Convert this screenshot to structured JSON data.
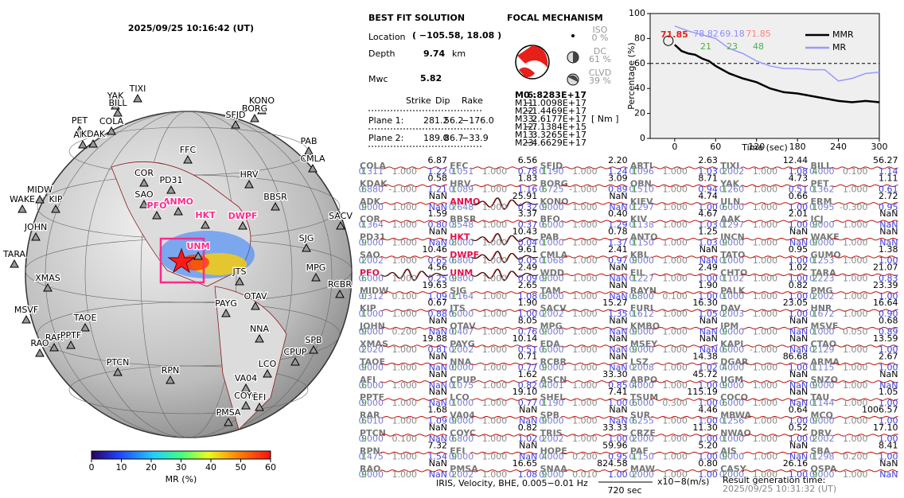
{
  "header": {
    "time": "2025/09/25  10:16:42 (UT)"
  },
  "solution": {
    "title": "BEST FIT SOLUTION",
    "location_label": "Location",
    "location": "( −105.58,  18.08 )",
    "depth_label": "Depth",
    "depth": "9.74",
    "depth_unit": "km",
    "mw_label": "Mwc",
    "mw": "5.82",
    "columns": [
      "Strike",
      "Dip",
      "Rake"
    ],
    "planes": [
      [
        "Plane 1:",
        "281.2",
        "56.2",
        "−176.0"
      ],
      [
        "Plane 2:",
        "189.0",
        "86.7",
        "−33.9"
      ]
    ]
  },
  "mechanism": {
    "title": "FOCAL MECHANISM",
    "parts": [
      [
        "ISO",
        "0 %"
      ],
      [
        "DC",
        "61 %"
      ],
      [
        "CLVD",
        "39 %"
      ]
    ],
    "tensor": [
      [
        "M0 :",
        "6.8283E+17"
      ],
      [
        "M11:",
        "−1.0098E+17"
      ],
      [
        "M22:",
        "−1.4469E+17"
      ],
      [
        "M33:",
        "2.6177E+17"
      ],
      [
        "M12:",
        "−7.1384E+15"
      ],
      [
        "M13:",
        "3.3265E+17"
      ],
      [
        "M23:",
        "−4.6629E+17"
      ]
    ],
    "unit": "[ Nm ]"
  },
  "chart_data": {
    "type": "line",
    "xlabel": "Time (sec)",
    "ylabel": "Percentage (%)",
    "xlim": [
      -36,
      300
    ],
    "ylim": [
      0,
      100
    ],
    "xticks": [
      0,
      60,
      120,
      180,
      240,
      300
    ],
    "yticks": [
      0,
      20,
      40,
      60,
      80,
      100
    ],
    "reference_line": 60,
    "legend": "upper right",
    "series": [
      {
        "name": "MMR",
        "color": "#000000",
        "x": [
          0,
          10,
          20,
          30,
          40,
          50,
          60,
          80,
          100,
          120,
          140,
          160,
          180,
          200,
          220,
          240,
          260,
          280,
          300
        ],
        "values": [
          75,
          70,
          68,
          67,
          64,
          62,
          58,
          52,
          48,
          45,
          40,
          37,
          36,
          34,
          32,
          30,
          29,
          30,
          29
        ]
      },
      {
        "name": "MR",
        "color": "#9a9aff",
        "x": [
          0,
          20,
          40,
          60,
          80,
          100,
          120,
          140,
          160,
          180,
          200,
          220,
          240,
          260,
          280,
          300
        ],
        "values": [
          90,
          86,
          83,
          80,
          72,
          68,
          62,
          58,
          56,
          56,
          55,
          55,
          46,
          48,
          52,
          53
        ]
      }
    ],
    "best": "71.85",
    "annotations": [
      [
        "78.82",
        "#8c8cff"
      ],
      [
        "69.18",
        "#8c8cff"
      ],
      [
        "71.85",
        "#ff8080"
      ],
      [
        "21",
        "#4caf50"
      ],
      [
        "23",
        "#4caf50"
      ],
      [
        "48",
        "#4caf50"
      ]
    ]
  },
  "map": {
    "stations": [
      [
        "YAK",
        false
      ],
      [
        "TIXI",
        false
      ],
      [
        "BILL",
        false
      ],
      [
        "KONO",
        false
      ],
      [
        "BORG",
        false
      ],
      [
        "PET",
        false
      ],
      [
        "COLA",
        false
      ],
      [
        "SFJD",
        false
      ],
      [
        "ADK",
        false
      ],
      [
        "KDAK",
        false
      ],
      [
        "PAB",
        false
      ],
      [
        "FFC",
        false
      ],
      [
        "CMLA",
        false
      ],
      [
        "COR",
        false
      ],
      [
        "PD31",
        false
      ],
      [
        "HRV",
        false
      ],
      [
        "SAO",
        false
      ],
      [
        "MIDW",
        false
      ],
      [
        "WAKE",
        false
      ],
      [
        "ANMO",
        true
      ],
      [
        "PFO",
        true
      ],
      [
        "KIP",
        false
      ],
      [
        "HKT",
        true
      ],
      [
        "DWPF",
        true
      ],
      [
        "BBSR",
        false
      ],
      [
        "SACV",
        false
      ],
      [
        "JOHN",
        false
      ],
      [
        "UNM",
        true
      ],
      [
        "SJG",
        false
      ],
      [
        "TARA",
        false
      ],
      [
        "MPG",
        false
      ],
      [
        "JTS",
        false
      ],
      [
        "RCBR",
        false
      ],
      [
        "XMAS",
        false
      ],
      [
        "OTAV",
        false
      ],
      [
        "PAYG",
        false
      ],
      [
        "MSVF",
        false
      ],
      [
        "TAOE",
        false
      ],
      [
        "RAR",
        false
      ],
      [
        "PPTF",
        false
      ],
      [
        "RAO",
        false
      ],
      [
        "NNA",
        false
      ],
      [
        "SPB",
        false
      ],
      [
        "CPUP",
        false
      ],
      [
        "LCO",
        false
      ],
      [
        "PTCN",
        false
      ],
      [
        "RPN",
        false
      ],
      [
        "VA04",
        false
      ],
      [
        "COYC",
        false
      ],
      [
        "EFI",
        false
      ],
      [
        "PMSA",
        false
      ]
    ],
    "colorbar": {
      "lim": [
        0,
        60
      ],
      "ticks": [
        0,
        10,
        20,
        30,
        40,
        50,
        60
      ],
      "label": "MR (%)"
    }
  },
  "stations": [
    [
      [
        "COLA",
        "6.87",
        "1",
        "0.311",
        "1.000",
        "1.22",
        false
      ],
      [
        "KDAK",
        "0.58",
        "6",
        "0.880",
        "-1.000",
        "1.21",
        false
      ],
      [
        "ADK",
        "NaN",
        "9",
        "0.000",
        "1.000",
        "NaN",
        false
      ],
      [
        "COR",
        "1.59",
        "1",
        "0.364",
        "1.000",
        "0.80",
        false
      ],
      [
        "PD31",
        "NaN",
        "9",
        "0.000",
        "1.000",
        "NaN",
        false
      ],
      [
        "SAO",
        "10.46",
        "2",
        "0.002",
        "1.000",
        "0.65",
        false
      ],
      [
        "PFO",
        "4.56",
        "6",
        "0.000",
        "1.000",
        "0.25",
        true
      ],
      [
        "MIDW",
        "19.63",
        "0",
        "0.312",
        "0.100",
        "1.09",
        false
      ],
      [
        "KIP",
        "0.67",
        "1",
        "0.000",
        "1.000",
        "0.88",
        false
      ],
      [
        "JOHN",
        "NaN",
        "9",
        "0.000",
        "0.200",
        "NaN",
        false
      ],
      [
        "XMAS",
        "19.88",
        "2",
        "0.020",
        "1.000",
        "0.81",
        false
      ],
      [
        "TAOE",
        "NaN",
        "9",
        "0.000",
        "1.000",
        "NaN",
        false
      ],
      [
        "AFI",
        "NaN",
        "6",
        "0.000",
        "1.000",
        "NaN",
        false
      ],
      [
        "PPTF",
        "NaN",
        "9",
        "0.000",
        "1.000",
        "NaN",
        false
      ],
      [
        "RAR",
        "1.68",
        "6",
        "0.010",
        "1.000",
        "1.09",
        false
      ],
      [
        "PTCN",
        "NaN",
        "9",
        "0.000",
        "0.100",
        "NaN",
        false
      ],
      [
        "RPN",
        "7.32",
        "1",
        "0.475",
        "1.000",
        "1.54",
        false
      ],
      [
        "RAO",
        "NaN",
        "9",
        "0.000",
        "1.000",
        "NaN",
        false
      ]
    ],
    [
      [
        "FFC",
        "6.56",
        "1",
        "0.051",
        "1.000",
        "0.78",
        false
      ],
      [
        "HRV",
        "1.83",
        "1",
        "0.089",
        "1.000",
        "1.16",
        false
      ],
      [
        "ANMO",
        "25.91",
        "7",
        "0.648",
        "1.000",
        "0.32",
        true
      ],
      [
        "BBSR",
        "3.37",
        "3",
        "0.548",
        "1.000",
        "0.37",
        false
      ],
      [
        "HKT",
        "10.43",
        "8",
        "0.000",
        "1.000",
        "0.04",
        true
      ],
      [
        "DWPF",
        "9.61",
        "6",
        "0.800",
        "1.000",
        "0.05",
        true
      ],
      [
        "UNM",
        "2.49",
        "9",
        "0.800",
        "1.000",
        "0.09",
        true
      ],
      [
        "SJG",
        "2.65",
        "1",
        "0.164",
        "1.000",
        "1.08",
        false
      ],
      [
        "JTS",
        "1.90",
        "6",
        "0.000",
        "1.000",
        "1.00",
        false
      ],
      [
        "OTAV",
        "8.05",
        "0",
        "0.407",
        "1.000",
        "0.76",
        false
      ],
      [
        "PAYG",
        "10.14",
        "2",
        "0.002",
        "1.000",
        "0.51",
        false
      ],
      [
        "NNA",
        "0.71",
        "0",
        "0.000",
        "1.000",
        "0.77",
        false
      ],
      [
        "CPUP",
        "1.62",
        "1",
        "0.075",
        "1.000",
        "0.82",
        false
      ],
      [
        "LCO",
        "19.10",
        "1",
        "0.000",
        "1.000",
        "0.77",
        false
      ],
      [
        "VA04",
        "NaN",
        "9",
        "0.000",
        "1.000",
        "NaN",
        false
      ],
      [
        "COYC",
        "0.82",
        "6",
        "0.800",
        "1.000",
        "1.02",
        false
      ],
      [
        "EFI",
        "NaN",
        "9",
        "0.000",
        "1.000",
        "NaN",
        false
      ],
      [
        "PMSA",
        "16.65",
        "2",
        "0.002",
        "1.000",
        "1.08",
        false
      ]
    ],
    [
      [
        "SFJD",
        "2.20",
        "1",
        "0.190",
        "1.000",
        "1.24",
        false
      ],
      [
        "BORG",
        "3.09",
        "6",
        "0.725",
        "-1.000",
        "0.89",
        false
      ],
      [
        "KONO",
        "NaN",
        "9",
        "0.000",
        "1.000",
        "NaN",
        false
      ],
      [
        "BFO",
        "0.40",
        "6",
        "0.000",
        "1.000",
        "1.29",
        false
      ],
      [
        "PAB",
        "0.78",
        "1",
        "0.000",
        "1.000",
        "1.37",
        false
      ],
      [
        "CMLA",
        "2.41",
        "1",
        "0.068",
        "1.000",
        "0.97",
        false
      ],
      [
        "WDD",
        "NaN",
        "9",
        "0.000",
        "1.000",
        "NaN",
        false
      ],
      [
        "TAM",
        "NaN",
        "6",
        "0.000",
        "1.000",
        "NaN",
        false
      ],
      [
        "SACV",
        "15.27",
        "2",
        "0.002",
        "1.000",
        "1.35",
        false
      ],
      [
        "MPG",
        "NaN",
        "9",
        "0.000",
        "1.000",
        "NaN",
        false
      ],
      [
        "EDA",
        "NaN",
        "6",
        "0.000",
        "1.000",
        "NaN",
        false
      ],
      [
        "RCBR",
        "NaN",
        "9",
        "0.000",
        "1.000",
        "NaN",
        false
      ],
      [
        "ASCN",
        "33.30",
        "4",
        "0.001",
        "1.000",
        "0.85",
        false
      ],
      [
        "SHEL",
        "7.41",
        "1",
        "0.190",
        "1.000",
        "1.00",
        false
      ],
      [
        "SPB",
        "NaN",
        "9",
        "0.000",
        "1.000",
        "NaN",
        false
      ],
      [
        "TRIS",
        "33.33",
        "2",
        "0.002",
        "1.000",
        "1.00",
        false
      ],
      [
        "HOPE",
        "59.96",
        "4",
        "0.000",
        "0.200",
        "0.95",
        false
      ],
      [
        "SNAA",
        "824.58",
        "9",
        "0.000",
        "0.010",
        "1.00",
        false
      ]
    ],
    [
      [
        "ARTI",
        "2.63",
        "1",
        "0.096",
        "1.000",
        "1.03",
        false
      ],
      [
        "OBN",
        "8.71",
        "1",
        "0.510",
        "1.000",
        "0.94",
        false
      ],
      [
        "KIEV",
        "4.74",
        "1",
        "0.297",
        "1.000",
        "1.00",
        false
      ],
      [
        "KIV",
        "4.67",
        "1",
        "0.138",
        "1.000",
        "1.03",
        false
      ],
      [
        "ANTO",
        "1.25",
        "1",
        "0.150",
        "1.000",
        "1.03",
        false
      ],
      [
        "KBL",
        "NaN",
        "9",
        "0.000",
        "1.000",
        "NaN",
        false
      ],
      [
        "EIL",
        "2.49",
        "1",
        "0.227",
        "1.000",
        "1.00",
        false
      ],
      [
        "RAYN",
        "1.90",
        "6",
        "0.800",
        "0.100",
        "1.00",
        false
      ],
      [
        "FURI",
        "16.30",
        "1",
        "0.612",
        "1.000",
        "1.05",
        false
      ],
      [
        "KMBO",
        "NaN",
        "9",
        "0.000",
        "1.000",
        "NaN",
        false
      ],
      [
        "MSEY",
        "NaN",
        "9",
        "0.000",
        "1.000",
        "NaN",
        false
      ],
      [
        "LSZ",
        "14.38",
        "2",
        "0.008",
        "1.000",
        "1.02",
        false
      ],
      [
        "ABPO",
        "45.72",
        "4",
        "0.000",
        "1.000",
        "1.00",
        false
      ],
      [
        "TSUM",
        "115.19",
        "6",
        "0.000",
        "0.300",
        "1.00",
        false
      ],
      [
        "SUR",
        "4.46",
        "6",
        "0.255",
        "1.000",
        "1.00",
        false
      ],
      [
        "CRZF",
        "11.30",
        "2",
        "0.000",
        "1.000",
        "1.00",
        false
      ],
      [
        "PAF",
        "5.20",
        "1",
        "0.150",
        "1.000",
        "1.00",
        false
      ],
      [
        "MAW",
        "0.80",
        "2",
        "0.000",
        "1.000",
        "1.00",
        false
      ]
    ],
    [
      [
        "TIXI",
        "12.44",
        "2",
        "0.002",
        "1.000",
        "1.08",
        false
      ],
      [
        "YAK",
        "4.73",
        "1",
        "0.260",
        "1.000",
        "0.51",
        false
      ],
      [
        "ULN",
        "0.66",
        "6",
        "0.000",
        "1.000",
        "1.00",
        false
      ],
      [
        "AAK",
        "2.01",
        "1",
        "0.297",
        "1.000",
        "1.00",
        false
      ],
      [
        "INCN",
        "NaN",
        "9",
        "0.000",
        "1.000",
        "NaN",
        false
      ],
      [
        "TATO",
        "0.95",
        "1",
        "0.000",
        "1.000",
        "1.00",
        false
      ],
      [
        "CHTO",
        "1.02",
        "1",
        "0.102",
        "1.000",
        "1.00",
        false
      ],
      [
        "PALK",
        "0.82",
        "1",
        "0.000",
        "1.000",
        "1.00",
        false
      ],
      [
        "DAV",
        "23.05",
        "2",
        "0.003",
        "1.000",
        "1.00",
        false
      ],
      [
        "IPM",
        "NaN",
        "9",
        "0.000",
        "1.000",
        "NaN",
        false
      ],
      [
        "KAPI",
        "NaN",
        "6",
        "0.000",
        "-1.000",
        "NaN",
        false
      ],
      [
        "DGAR",
        "86.68",
        "4",
        "0.000",
        "1.000",
        "1.00",
        false
      ],
      [
        "UGM",
        "NaN",
        "9",
        "0.000",
        "1.000",
        "NaN",
        false
      ],
      [
        "COCO",
        "NaN",
        "6",
        "0.000",
        "1.000",
        "NaN",
        false
      ],
      [
        "MBWA",
        "0.64",
        "1",
        "0.256",
        "1.000",
        "1.00",
        false
      ],
      [
        "NWAO",
        "0.52",
        "1",
        "0.000",
        "1.000",
        "1.00",
        false
      ],
      [
        "AIS",
        "NaN",
        "9",
        "0.000",
        "1.000",
        "NaN",
        false
      ],
      [
        "CASY",
        "26.16",
        "2",
        "0.000",
        "1.000",
        "1.00",
        false
      ]
    ],
    [
      [
        "BILL",
        "56.27",
        "4",
        "0.000",
        "0.100",
        "1.14",
        false
      ],
      [
        "PET",
        "1.11",
        "1",
        "0.362",
        "1.000",
        "0.61",
        false
      ],
      [
        "ERM",
        "2.72",
        "1",
        "0.095",
        "-0.300",
        "0.95",
        false
      ],
      [
        "ICJ",
        "NaN",
        "9",
        "0.000",
        "1.000",
        "NaN",
        false
      ],
      [
        "WAKE",
        "NaN",
        "9",
        "0.000",
        "1.000",
        "NaN",
        false
      ],
      [
        "GUMO",
        "1.38",
        "1",
        "0.253",
        "1.000",
        "1.00",
        false
      ],
      [
        "TARA",
        "21.07",
        "2",
        "0.223",
        "1.000",
        "0.83",
        false
      ],
      [
        "PMG",
        "23.39",
        "2",
        "0.002",
        "1.000",
        "1.00",
        false
      ],
      [
        "HNR",
        "16.64",
        "1",
        "0.672",
        "1.000",
        "0.90",
        false
      ],
      [
        "MSVF",
        "0.68",
        "1",
        "0.000",
        "0.050",
        "0.89",
        false
      ],
      [
        "CTAO",
        "13.59",
        "2",
        "0.129",
        "1.000",
        "1.00",
        false
      ],
      [
        "ARMA",
        "2.67",
        "1",
        "0.115",
        "1.000",
        "1.00",
        false
      ],
      [
        "SNZO",
        "NaN",
        "9",
        "0.000",
        "1.000",
        "NaN",
        false
      ],
      [
        "TAU",
        "1.05",
        "1",
        "0.144",
        "1.000",
        "1.00",
        false
      ],
      [
        "MCQ",
        "1006.57",
        "9",
        "0.000",
        "1.000",
        "1.00",
        false
      ],
      [
        "DRV",
        "17.10",
        "2",
        "0.002",
        "1.000",
        "1.00",
        false
      ],
      [
        "SBA",
        "8.41",
        "1",
        "0.298",
        "0.200",
        "1.00",
        false
      ],
      [
        "QSPA",
        "NaN",
        "9",
        "0.000",
        "1.000",
        "NaN",
        false
      ]
    ]
  ],
  "footer": {
    "filter": "IRIS, Velocity,   BHE,  0.005−0.01 Hz",
    "scale": "720 sec",
    "unit": "x10−8(m/s)",
    "gen_label": "Result generation time:",
    "gen_time": "2025/09/25 10:31:32 (UT)"
  }
}
